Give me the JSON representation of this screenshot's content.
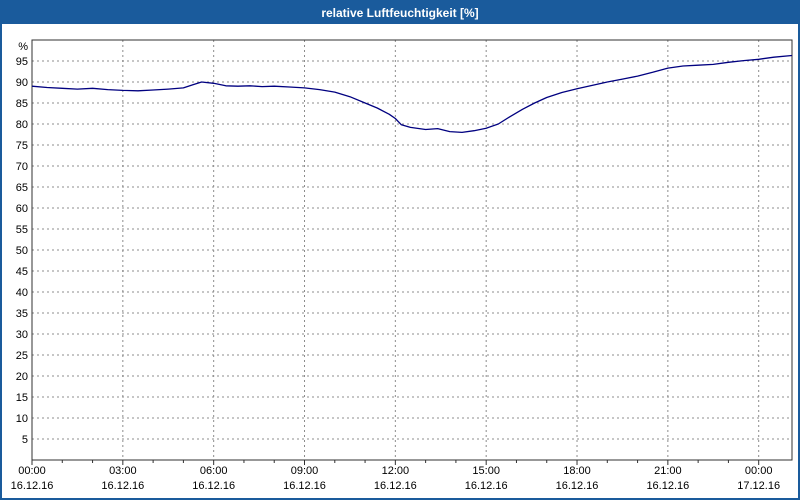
{
  "title": "relative Luftfeuchtigkeit [%]",
  "colors": {
    "title_bar": "#1A5B9C",
    "title_text": "#FFFFFF",
    "line": "#000080",
    "grid": "#8C8C8C",
    "frame": "#303030"
  },
  "chart_data": {
    "type": "line",
    "title": "relative Luftfeuchtigkeit [%]",
    "xlabel": "",
    "ylabel": "%",
    "xlim": [
      0,
      25.1
    ],
    "ylim": [
      0,
      100
    ],
    "grid": "dashed",
    "legend": "none",
    "y_ticks": [
      5,
      10,
      15,
      20,
      25,
      30,
      35,
      40,
      45,
      50,
      55,
      60,
      65,
      70,
      75,
      80,
      85,
      90,
      95
    ],
    "x_ticks": [
      {
        "hour": 0,
        "time": "00:00",
        "date": "16.12.16"
      },
      {
        "hour": 3,
        "time": "03:00",
        "date": "16.12.16"
      },
      {
        "hour": 6,
        "time": "06:00",
        "date": "16.12.16"
      },
      {
        "hour": 9,
        "time": "09:00",
        "date": "16.12.16"
      },
      {
        "hour": 12,
        "time": "12:00",
        "date": "16.12.16"
      },
      {
        "hour": 15,
        "time": "15:00",
        "date": "16.12.16"
      },
      {
        "hour": 18,
        "time": "18:00",
        "date": "16.12.16"
      },
      {
        "hour": 21,
        "time": "21:00",
        "date": "16.12.16"
      },
      {
        "hour": 24,
        "time": "00:00",
        "date": "17.12.16"
      }
    ],
    "series": [
      {
        "name": "relative Luftfeuchtigkeit",
        "x": [
          0,
          0.5,
          1,
          1.5,
          2,
          2.5,
          3,
          3.5,
          4,
          4.5,
          5,
          5.3,
          5.6,
          6,
          6.4,
          6.8,
          7.2,
          7.6,
          8,
          8.5,
          9,
          9.5,
          10,
          10.5,
          11,
          11.4,
          11.8,
          12,
          12.2,
          12.5,
          13,
          13.4,
          13.8,
          14.2,
          14.6,
          15,
          15.4,
          15.8,
          16.2,
          16.6,
          17,
          17.5,
          18,
          18.5,
          19,
          19.5,
          20,
          20.5,
          21,
          21.5,
          22,
          22.5,
          23,
          23.5,
          24,
          24.5,
          25.1
        ],
        "y": [
          89,
          88.7,
          88.5,
          88.3,
          88.5,
          88.2,
          88,
          87.9,
          88.1,
          88.3,
          88.6,
          89.3,
          90,
          89.7,
          89.1,
          89,
          89.1,
          88.9,
          89,
          88.8,
          88.6,
          88.2,
          87.6,
          86.5,
          85,
          83.8,
          82.3,
          81.3,
          79.8,
          79.2,
          78.7,
          78.9,
          78.2,
          78,
          78.4,
          79,
          80,
          81.8,
          83.5,
          85,
          86.3,
          87.5,
          88.4,
          89.2,
          90,
          90.7,
          91.4,
          92.3,
          93.3,
          93.8,
          94,
          94.2,
          94.7,
          95.1,
          95.4,
          95.9,
          96.3
        ]
      }
    ]
  }
}
